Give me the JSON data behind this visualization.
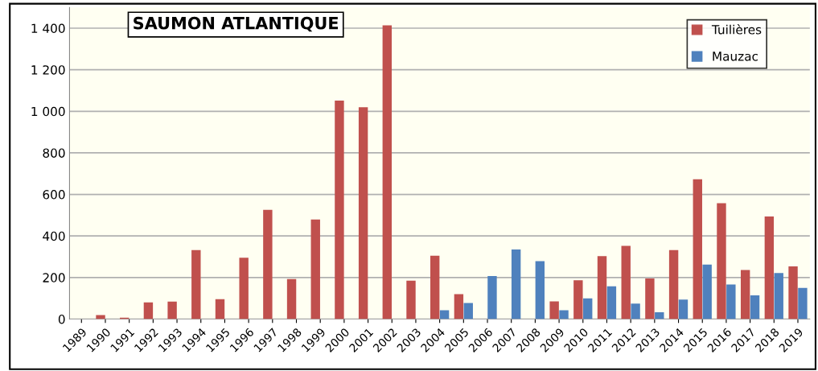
{
  "chart_data": {
    "type": "bar",
    "title": "SAUMON ATLANTIQUE",
    "categories": [
      "1989",
      "1990",
      "1991",
      "1992",
      "1993",
      "1994",
      "1995",
      "1996",
      "1997",
      "1998",
      "1999",
      "2000",
      "2001",
      "2002",
      "2003",
      "2004",
      "2005",
      "2006",
      "2007",
      "2008",
      "2009",
      "2010",
      "2011",
      "2012",
      "2013",
      "2014",
      "2015",
      "2016",
      "2017",
      "2018",
      "2019"
    ],
    "series": [
      {
        "name": "Tuilières",
        "color": "#c0504d",
        "values": [
          null,
          19,
          7,
          80,
          84,
          332,
          96,
          295,
          526,
          193,
          479,
          1052,
          1020,
          1414,
          185,
          305,
          120,
          null,
          null,
          null,
          85,
          187,
          303,
          352,
          195,
          332,
          673,
          558,
          236,
          494,
          254
        ]
      },
      {
        "name": "Mauzac",
        "color": "#4f81bd",
        "values": [
          null,
          null,
          null,
          null,
          null,
          null,
          null,
          null,
          null,
          null,
          null,
          null,
          null,
          null,
          null,
          42,
          77,
          207,
          335,
          279,
          42,
          100,
          158,
          74,
          33,
          94,
          262,
          166,
          114,
          222,
          150
        ]
      }
    ],
    "ylim": [
      0,
      1500
    ],
    "yticks": [
      0,
      200,
      400,
      600,
      800,
      {
        "value": 1000,
        "label": "1 000"
      },
      {
        "value": 1200,
        "label": "1 200"
      },
      {
        "value": 1400,
        "label": "1 400"
      }
    ],
    "grid": "y",
    "legend": "top right"
  }
}
